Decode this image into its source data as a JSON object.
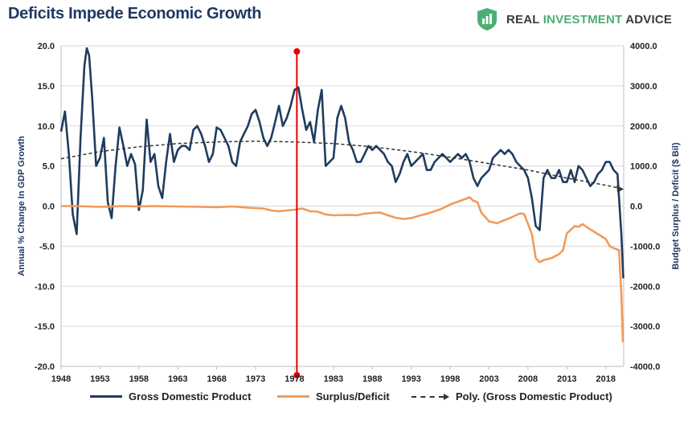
{
  "title": "Deficits Impede Economic Growth",
  "brand": {
    "name_part1": "REAL ",
    "name_part2": "INVESTMENT",
    "name_part3": " ADVICE",
    "logo_icon": "chart-shield-icon",
    "logo_color": "#4caf73"
  },
  "colors": {
    "gdp": "#1f3c5e",
    "deficit": "#f29a5a",
    "poly": "#333333",
    "marker": "#e00000",
    "grid": "#d9d9d9"
  },
  "chart_data": {
    "type": "line",
    "title": "Deficits Impede Economic Growth",
    "ylabel_left": "Annual % Change In GDP Growth",
    "ylabel_right": "Budget Surplus / Deficit ($ Bil)",
    "ylim_left": [
      -20,
      20
    ],
    "ylim_right": [
      -4000,
      4000
    ],
    "left_ticks": [
      "20.0",
      "15.0",
      "10.0",
      "5.0",
      "0.0",
      "-5.0",
      "-10.0",
      "-15.0",
      "-20.0"
    ],
    "right_ticks": [
      "4000.0",
      "3000.0",
      "2000.0",
      "1000.0",
      "0.0",
      "-1000.0",
      "-2000.0",
      "-3000.0",
      "-4000.0"
    ],
    "x_ticks": [
      "1948",
      "1953",
      "1958",
      "1963",
      "1968",
      "1973",
      "1978",
      "1983",
      "1988",
      "1993",
      "1998",
      "2003",
      "2008",
      "2013",
      "2018"
    ],
    "xlim": [
      1948,
      2020.3
    ],
    "grid": true,
    "legend_position": "bottom",
    "vertical_marker_x": 1978.3,
    "series": [
      {
        "name": "Gross Domestic Product",
        "axis": "left",
        "points": [
          [
            1948,
            9.3
          ],
          [
            1948.5,
            11.8
          ],
          [
            1949,
            6.5
          ],
          [
            1949.5,
            -1.0
          ],
          [
            1950,
            -3.5
          ],
          [
            1950.5,
            8.5
          ],
          [
            1951,
            17.5
          ],
          [
            1951.3,
            19.7
          ],
          [
            1951.6,
            18.8
          ],
          [
            1952,
            13.5
          ],
          [
            1952.5,
            5.0
          ],
          [
            1953,
            6.0
          ],
          [
            1953.5,
            8.5
          ],
          [
            1954,
            0.5
          ],
          [
            1954.5,
            -1.5
          ],
          [
            1955,
            5.0
          ],
          [
            1955.5,
            9.8
          ],
          [
            1956,
            7.5
          ],
          [
            1956.5,
            5.0
          ],
          [
            1957,
            6.5
          ],
          [
            1957.5,
            5.2
          ],
          [
            1958,
            -0.5
          ],
          [
            1958.5,
            2.0
          ],
          [
            1959,
            10.8
          ],
          [
            1959.5,
            5.5
          ],
          [
            1960,
            6.5
          ],
          [
            1960.5,
            2.5
          ],
          [
            1961,
            1.0
          ],
          [
            1961.5,
            5.5
          ],
          [
            1962,
            9.0
          ],
          [
            1962.5,
            5.5
          ],
          [
            1963,
            7.0
          ],
          [
            1963.5,
            7.5
          ],
          [
            1964,
            7.5
          ],
          [
            1964.5,
            7.0
          ],
          [
            1965,
            9.5
          ],
          [
            1965.5,
            10.0
          ],
          [
            1966,
            9.0
          ],
          [
            1966.5,
            7.5
          ],
          [
            1967,
            5.5
          ],
          [
            1967.5,
            6.5
          ],
          [
            1968,
            9.8
          ],
          [
            1968.5,
            9.5
          ],
          [
            1969,
            8.5
          ],
          [
            1969.5,
            7.5
          ],
          [
            1970,
            5.5
          ],
          [
            1970.5,
            5.0
          ],
          [
            1971,
            8.0
          ],
          [
            1971.5,
            9.0
          ],
          [
            1972,
            10.0
          ],
          [
            1972.5,
            11.5
          ],
          [
            1973,
            12.0
          ],
          [
            1973.5,
            10.5
          ],
          [
            1974,
            8.5
          ],
          [
            1974.5,
            7.5
          ],
          [
            1975,
            8.5
          ],
          [
            1975.5,
            10.5
          ],
          [
            1976,
            12.5
          ],
          [
            1976.5,
            10.0
          ],
          [
            1977,
            11.0
          ],
          [
            1977.5,
            12.5
          ],
          [
            1978,
            14.5
          ],
          [
            1978.5,
            14.8
          ],
          [
            1979,
            12.0
          ],
          [
            1979.5,
            9.5
          ],
          [
            1980,
            10.5
          ],
          [
            1980.5,
            8.0
          ],
          [
            1981,
            12.0
          ],
          [
            1981.5,
            14.5
          ],
          [
            1982,
            5.0
          ],
          [
            1982.5,
            5.5
          ],
          [
            1983,
            6.0
          ],
          [
            1983.5,
            11.0
          ],
          [
            1984,
            12.5
          ],
          [
            1984.5,
            11.0
          ],
          [
            1985,
            8.0
          ],
          [
            1985.5,
            7.0
          ],
          [
            1986,
            5.5
          ],
          [
            1986.5,
            5.5
          ],
          [
            1987,
            6.5
          ],
          [
            1987.5,
            7.5
          ],
          [
            1988,
            7.0
          ],
          [
            1988.5,
            7.5
          ],
          [
            1989,
            7.0
          ],
          [
            1989.5,
            6.5
          ],
          [
            1990,
            5.5
          ],
          [
            1990.5,
            5.0
          ],
          [
            1991,
            3.0
          ],
          [
            1991.5,
            4.0
          ],
          [
            1992,
            5.5
          ],
          [
            1992.5,
            6.5
          ],
          [
            1993,
            5.0
          ],
          [
            1993.5,
            5.5
          ],
          [
            1994,
            6.0
          ],
          [
            1994.5,
            6.5
          ],
          [
            1995,
            4.5
          ],
          [
            1995.5,
            4.5
          ],
          [
            1996,
            5.5
          ],
          [
            1996.5,
            6.0
          ],
          [
            1997,
            6.5
          ],
          [
            1997.5,
            6.0
          ],
          [
            1998,
            5.5
          ],
          [
            1998.5,
            6.0
          ],
          [
            1999,
            6.5
          ],
          [
            1999.5,
            6.0
          ],
          [
            2000,
            6.5
          ],
          [
            2000.5,
            5.5
          ],
          [
            2001,
            3.5
          ],
          [
            2001.5,
            2.5
          ],
          [
            2002,
            3.5
          ],
          [
            2002.5,
            4.0
          ],
          [
            2003,
            4.5
          ],
          [
            2003.5,
            6.0
          ],
          [
            2004,
            6.5
          ],
          [
            2004.5,
            7.0
          ],
          [
            2005,
            6.5
          ],
          [
            2005.5,
            7.0
          ],
          [
            2006,
            6.5
          ],
          [
            2006.5,
            5.5
          ],
          [
            2007,
            5.0
          ],
          [
            2007.5,
            4.5
          ],
          [
            2008,
            3.5
          ],
          [
            2008.5,
            1.0
          ],
          [
            2009,
            -2.5
          ],
          [
            2009.5,
            -3.0
          ],
          [
            2010,
            3.5
          ],
          [
            2010.5,
            4.5
          ],
          [
            2011,
            3.5
          ],
          [
            2011.5,
            3.5
          ],
          [
            2012,
            4.5
          ],
          [
            2012.5,
            3.0
          ],
          [
            2013,
            3.0
          ],
          [
            2013.5,
            4.5
          ],
          [
            2014,
            3.0
          ],
          [
            2014.5,
            5.0
          ],
          [
            2015,
            4.5
          ],
          [
            2015.5,
            3.5
          ],
          [
            2016,
            2.5
          ],
          [
            2016.5,
            3.0
          ],
          [
            2017,
            4.0
          ],
          [
            2017.5,
            4.5
          ],
          [
            2018,
            5.5
          ],
          [
            2018.5,
            5.5
          ],
          [
            2019,
            4.5
          ],
          [
            2019.5,
            4.0
          ],
          [
            2020,
            -3.5
          ],
          [
            2020.25,
            -9.0
          ]
        ]
      },
      {
        "name": "Surplus/Deficit",
        "axis": "right",
        "points": [
          [
            1948,
            0
          ],
          [
            1950,
            0
          ],
          [
            1953,
            -20
          ],
          [
            1956,
            0
          ],
          [
            1958,
            -10
          ],
          [
            1960,
            0
          ],
          [
            1963,
            -10
          ],
          [
            1966,
            -20
          ],
          [
            1968,
            -30
          ],
          [
            1970,
            -10
          ],
          [
            1972,
            -40
          ],
          [
            1974,
            -60
          ],
          [
            1975,
            -110
          ],
          [
            1976,
            -130
          ],
          [
            1978,
            -90
          ],
          [
            1979,
            -60
          ],
          [
            1980,
            -130
          ],
          [
            1981,
            -140
          ],
          [
            1982,
            -210
          ],
          [
            1983,
            -230
          ],
          [
            1985,
            -220
          ],
          [
            1986,
            -230
          ],
          [
            1987,
            -190
          ],
          [
            1988,
            -170
          ],
          [
            1989,
            -160
          ],
          [
            1990,
            -230
          ],
          [
            1991,
            -290
          ],
          [
            1992,
            -320
          ],
          [
            1993,
            -300
          ],
          [
            1994,
            -240
          ],
          [
            1995,
            -190
          ],
          [
            1996,
            -130
          ],
          [
            1997,
            -60
          ],
          [
            1998,
            40
          ],
          [
            1999,
            110
          ],
          [
            2000,
            180
          ],
          [
            2000.5,
            220
          ],
          [
            2001,
            130
          ],
          [
            2001.5,
            100
          ],
          [
            2002,
            -160
          ],
          [
            2003,
            -380
          ],
          [
            2004,
            -430
          ],
          [
            2005,
            -350
          ],
          [
            2006,
            -270
          ],
          [
            2007,
            -180
          ],
          [
            2007.5,
            -200
          ],
          [
            2008,
            -440
          ],
          [
            2008.5,
            -700
          ],
          [
            2009,
            -1300
          ],
          [
            2009.5,
            -1400
          ],
          [
            2010,
            -1350
          ],
          [
            2011,
            -1300
          ],
          [
            2012,
            -1200
          ],
          [
            2012.5,
            -1100
          ],
          [
            2013,
            -680
          ],
          [
            2014,
            -500
          ],
          [
            2014.5,
            -520
          ],
          [
            2015,
            -450
          ],
          [
            2016,
            -580
          ],
          [
            2017,
            -700
          ],
          [
            2018,
            -820
          ],
          [
            2018.5,
            -1000
          ],
          [
            2019,
            -1050
          ],
          [
            2019.7,
            -1100
          ],
          [
            2020,
            -2200
          ],
          [
            2020.2,
            -3400
          ]
        ]
      },
      {
        "name": "Poly. (Gross Domestic Product)",
        "axis": "left",
        "style": "dashed",
        "points": [
          [
            1948,
            5.9
          ],
          [
            1953,
            6.8
          ],
          [
            1958,
            7.4
          ],
          [
            1963,
            7.8
          ],
          [
            1968,
            8.0
          ],
          [
            1973,
            8.1
          ],
          [
            1978,
            8.0
          ],
          [
            1983,
            7.8
          ],
          [
            1988,
            7.4
          ],
          [
            1993,
            6.8
          ],
          [
            1998,
            6.1
          ],
          [
            2003,
            5.3
          ],
          [
            2008,
            4.5
          ],
          [
            2013,
            3.5
          ],
          [
            2018,
            2.6
          ],
          [
            2020,
            2.2
          ]
        ]
      }
    ]
  },
  "legend": [
    {
      "label": "Gross Domestic Product"
    },
    {
      "label": "Surplus/Deficit"
    },
    {
      "label": "Poly. (Gross Domestic Product)"
    }
  ]
}
